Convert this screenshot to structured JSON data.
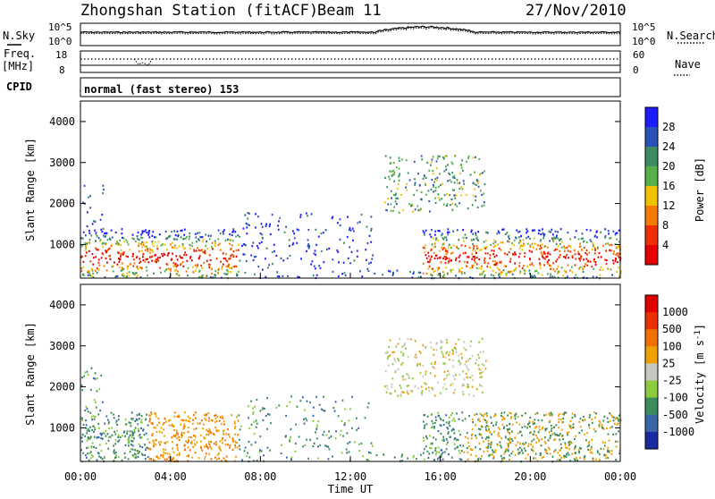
{
  "header": {
    "station": "Zhongshan Station (fitACF)",
    "beam": "Beam 11",
    "date": "27/Nov/2010"
  },
  "left_labels": {
    "nsky": "N.Sky",
    "freq": "Freq.",
    "mhz": "[MHz]",
    "cpid": "CPID"
  },
  "right_labels": {
    "nsearch": "N.Search",
    "nave": "Nave"
  },
  "cpid_text": "normal (fast stereo) 153",
  "colors": {
    "power": [
      "#1c1cff",
      "#2a52b8",
      "#3c8c64",
      "#58b04a",
      "#f2c200",
      "#f47a00",
      "#ee3000",
      "#e40000"
    ],
    "velocity": [
      "#1a2aa0",
      "#3a68a6",
      "#3a8c5c",
      "#8ccc3c",
      "#c8c8c0",
      "#f0a000",
      "#f07000",
      "#e83000",
      "#e00000"
    ]
  },
  "chart_data": [
    {
      "type": "line",
      "panel": "noise",
      "xlim": [
        0,
        24
      ],
      "y_ticks_left": [
        "10^5",
        "10^0"
      ],
      "y_ticks_right": [
        "10^5",
        "10^0"
      ],
      "series": [
        {
          "name": "N.Sky",
          "description_level": "approx flat near 10^2, bump to ~10^4 around 13:30-17:00"
        }
      ]
    },
    {
      "type": "line",
      "panel": "frequency-nave",
      "xlim": [
        0,
        24
      ],
      "y_ticks_left": [
        "18",
        "8"
      ],
      "y_ticks_right": [
        "60",
        "0"
      ],
      "series": [
        {
          "name": "Freq.",
          "level": 12
        },
        {
          "name": "Nave",
          "level": 35
        }
      ]
    },
    {
      "type": "heatmap",
      "panel": "power",
      "ylabel": "Slant Range [km]",
      "colorbar_label": "Power [dB]",
      "colorbar_ticks": [
        "28",
        "24",
        "20",
        "16",
        "12",
        "8",
        "4"
      ],
      "y_ticks": [
        "4000",
        "3000",
        "2000",
        "1000"
      ],
      "xlim": [
        0,
        24
      ],
      "ylim": [
        180,
        4500
      ],
      "echo_regions": [
        {
          "t0": 0.5,
          "t1": 7.0,
          "r0": 400,
          "r1": 1400,
          "level": "high"
        },
        {
          "t0": 7.0,
          "t1": 13.0,
          "r0": 300,
          "r1": 1800,
          "level": "low"
        },
        {
          "t0": 13.5,
          "t1": 18.0,
          "r0": 1800,
          "r1": 3200,
          "level": "medium"
        },
        {
          "t0": 15.0,
          "t1": 24.0,
          "r0": 400,
          "r1": 1400,
          "level": "high"
        }
      ]
    },
    {
      "type": "heatmap",
      "panel": "velocity",
      "ylabel": "Slant Range [km]",
      "colorbar_label": "Velocity [m s^-1]",
      "colorbar_ticks": [
        "1000",
        "500",
        "100",
        "25",
        "-25",
        "-100",
        "-500",
        "-1000"
      ],
      "y_ticks": [
        "4000",
        "3000",
        "2000",
        "1000"
      ],
      "xlabel": "Time UT",
      "x_ticks": [
        "00:00",
        "04:00",
        "08:00",
        "12:00",
        "16:00",
        "20:00",
        "00:00"
      ],
      "xlim": [
        0,
        24
      ],
      "ylim": [
        180,
        4500
      ]
    }
  ]
}
